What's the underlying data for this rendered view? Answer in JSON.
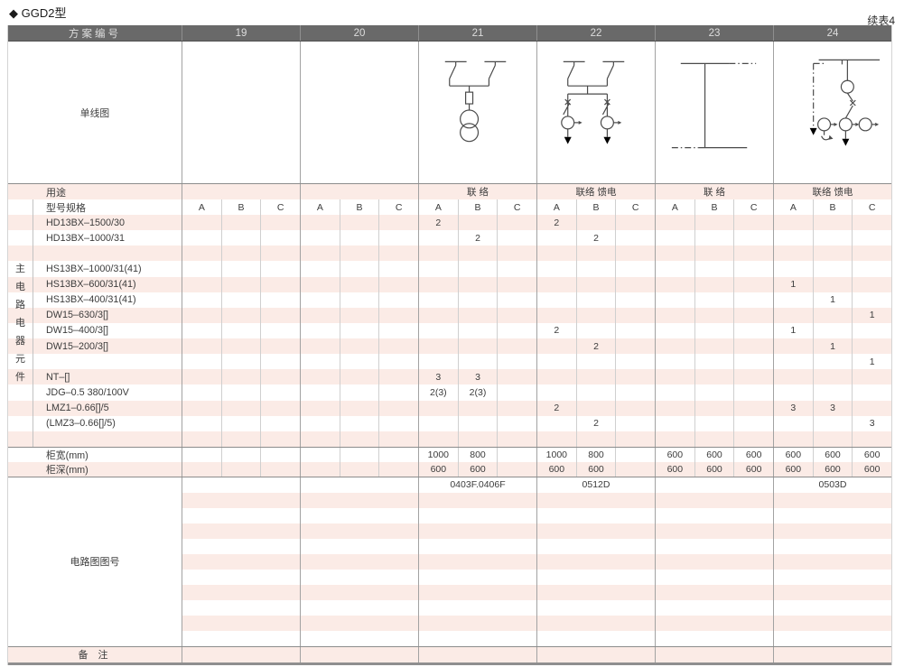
{
  "page": {
    "title": "◆ GGD2型",
    "continuation": "续表4"
  },
  "colors": {
    "header_bg": "#696969",
    "stripe_pink": "#fbebe6",
    "rule_gray": "#8c8c8c",
    "grid_gray": "#a2a2a2"
  },
  "table": {
    "header": {
      "label": "方案编号",
      "schemes": [
        "19",
        "20",
        "21",
        "22",
        "23",
        "24"
      ]
    },
    "diagram_row_label": "单线图",
    "diagrams": {
      "scheme_19": "",
      "scheme_20": "",
      "scheme_21": "bus-tie-two-switches-fuse-voltage-transformer",
      "scheme_22": "bus-tie-two-switches-two-ct-feeders",
      "scheme_23": "busbar-link",
      "scheme_24": "feeder-meter-switch-three-cts"
    },
    "usage_row": {
      "label": "用途",
      "values": [
        "",
        "",
        "联 络",
        "联络 馈电",
        "联 络",
        "联络 馈电"
      ]
    },
    "spec_row": {
      "label": "型号规格",
      "subcols": [
        "A",
        "B",
        "C"
      ]
    },
    "side_label_chars": [
      "主",
      "电",
      "路",
      "电",
      "器",
      "元",
      "件"
    ],
    "component_rows": [
      {
        "label": "HD13BX–1500/30",
        "cells": [
          "",
          "",
          "",
          "",
          "",
          "",
          "2",
          "",
          "",
          "2",
          "",
          "",
          "",
          "",
          "",
          "",
          "",
          ""
        ]
      },
      {
        "label": "HD13BX–1000/31",
        "cells": [
          "",
          "",
          "",
          "",
          "",
          "",
          "",
          "2",
          "",
          "",
          "2",
          "",
          "",
          "",
          "",
          "",
          "",
          ""
        ]
      },
      {
        "label": "",
        "cells": [
          "",
          "",
          "",
          "",
          "",
          "",
          "",
          "",
          "",
          "",
          "",
          "",
          "",
          "",
          "",
          "",
          "",
          ""
        ]
      },
      {
        "label": "HS13BX–1000/31(41)",
        "cells": [
          "",
          "",
          "",
          "",
          "",
          "",
          "",
          "",
          "",
          "",
          "",
          "",
          "",
          "",
          "",
          "",
          "",
          ""
        ]
      },
      {
        "label": "HS13BX–600/31(41)",
        "cells": [
          "",
          "",
          "",
          "",
          "",
          "",
          "",
          "",
          "",
          "",
          "",
          "",
          "",
          "",
          "",
          "1",
          "",
          ""
        ]
      },
      {
        "label": "HS13BX–400/31(41)",
        "cells": [
          "",
          "",
          "",
          "",
          "",
          "",
          "",
          "",
          "",
          "",
          "",
          "",
          "",
          "",
          "",
          "",
          "1",
          ""
        ]
      },
      {
        "label": "DW15–630/3[]",
        "cells": [
          "",
          "",
          "",
          "",
          "",
          "",
          "",
          "",
          "",
          "",
          "",
          "",
          "",
          "",
          "",
          "",
          "",
          "1"
        ]
      },
      {
        "label": "DW15–400/3[]",
        "cells": [
          "",
          "",
          "",
          "",
          "",
          "",
          "",
          "",
          "",
          "2",
          "",
          "",
          "",
          "",
          "",
          "1",
          "",
          ""
        ]
      },
      {
        "label": "DW15–200/3[]",
        "cells": [
          "",
          "",
          "",
          "",
          "",
          "",
          "",
          "",
          "",
          "",
          "2",
          "",
          "",
          "",
          "",
          "",
          "1",
          ""
        ]
      },
      {
        "label": "",
        "cells": [
          "",
          "",
          "",
          "",
          "",
          "",
          "",
          "",
          "",
          "",
          "",
          "",
          "",
          "",
          "",
          "",
          "",
          "1"
        ]
      },
      {
        "label": "NT–[]",
        "cells": [
          "",
          "",
          "",
          "",
          "",
          "",
          "3",
          "3",
          "",
          "",
          "",
          "",
          "",
          "",
          "",
          "",
          "",
          ""
        ]
      },
      {
        "label": "JDG–0.5  380/100V",
        "cells": [
          "",
          "",
          "",
          "",
          "",
          "",
          "2(3)",
          "2(3)",
          "",
          "",
          "",
          "",
          "",
          "",
          "",
          "",
          "",
          ""
        ]
      },
      {
        "label": "LMZ1–0.66[]/5",
        "cells": [
          "",
          "",
          "",
          "",
          "",
          "",
          "",
          "",
          "",
          "2",
          "",
          "",
          "",
          "",
          "",
          "3",
          "3",
          ""
        ]
      },
      {
        "label": "(LMZ3–0.66[]/5)",
        "cells": [
          "",
          "",
          "",
          "",
          "",
          "",
          "",
          "",
          "",
          "",
          "2",
          "",
          "",
          "",
          "",
          "",
          "",
          "3"
        ]
      },
      {
        "label": "",
        "cells": [
          "",
          "",
          "",
          "",
          "",
          "",
          "",
          "",
          "",
          "",
          "",
          "",
          "",
          "",
          "",
          "",
          "",
          ""
        ]
      }
    ],
    "width_row": {
      "label": "柜宽(mm)",
      "cells": [
        "",
        "",
        "",
        "",
        "",
        "",
        "1000",
        "800",
        "",
        "1000",
        "800",
        "",
        "600",
        "600",
        "600",
        "600",
        "600",
        "600"
      ]
    },
    "depth_row": {
      "label": "柜深(mm)",
      "cells": [
        "",
        "",
        "",
        "",
        "",
        "",
        "600",
        "600",
        "",
        "600",
        "600",
        "",
        "600",
        "600",
        "600",
        "600",
        "600",
        "600"
      ]
    },
    "drawing_section": {
      "label": "电路图图号",
      "first_row": [
        "",
        "",
        "0403F.0406F",
        "0512D",
        "",
        "0503D"
      ],
      "extra_blank_rows": 10
    },
    "remarks_row": {
      "label": "备 注",
      "values": [
        "",
        "",
        "",
        "",
        "",
        ""
      ]
    }
  }
}
